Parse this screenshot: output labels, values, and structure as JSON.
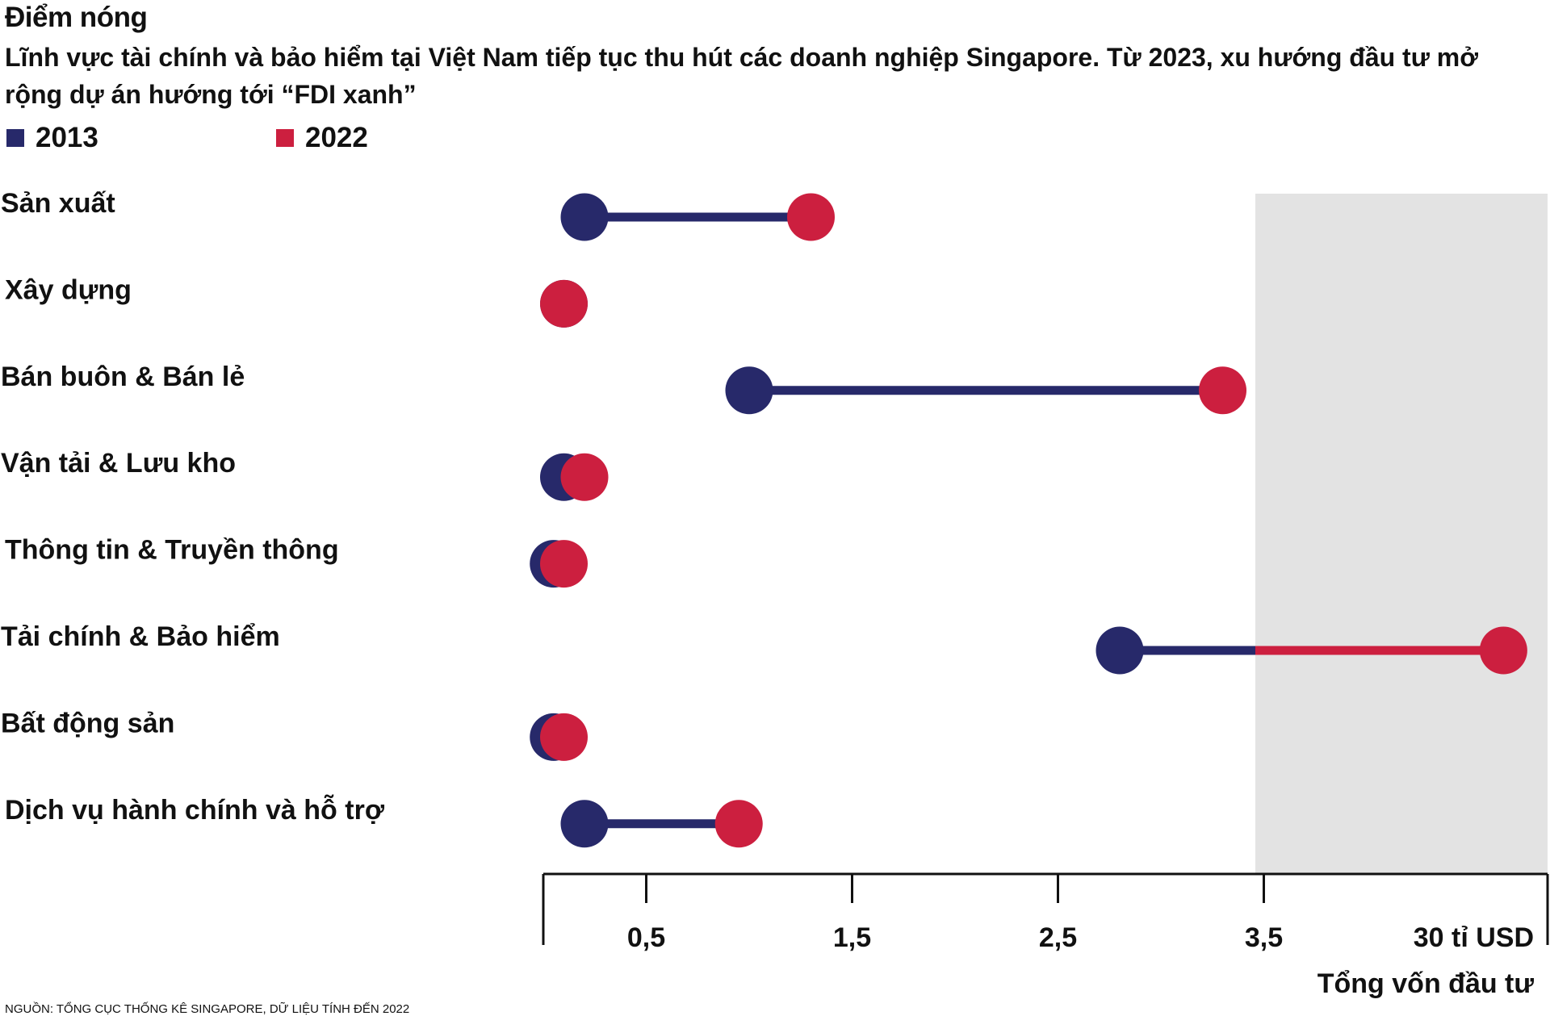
{
  "title": "Điểm nóng",
  "subtitle": "Lĩnh vực tài chính và bảo hiểm tại Việt Nam tiếp tục thu hút các doanh nghiệp Singapore. Từ 2023, xu hướng đầu tư mở rộng dự án hướng tới “FDI xanh”",
  "source": "NGUỒN: TỔNG CỤC THỐNG KÊ SINGAPORE, DỮ LIỆU TÍNH ĐẾN 2022",
  "colors": {
    "y2013": "#27296a",
    "y2022": "#cc1f3f",
    "highlight_band": "#e3e3e3",
    "axis": "#111111"
  },
  "chart_data": {
    "type": "dumbbell",
    "title": "Điểm nóng",
    "xlabel": "Tổng vốn đầu tư",
    "unit": "tỉ USD",
    "x_tick_labels": [
      "0,5",
      "1,5",
      "2,5",
      "3,5",
      "30 tỉ USD"
    ],
    "x_tick_values": [
      0.5,
      1.5,
      2.5,
      3.5,
      30
    ],
    "xlim": [
      0,
      30
    ],
    "axis_break_after": 3.5,
    "grid": false,
    "legend_position": "top-left",
    "series": [
      {
        "name": "2013",
        "color": "#27296a"
      },
      {
        "name": "2022",
        "color": "#cc1f3f"
      }
    ],
    "categories": [
      "Sản xuất",
      "Xây dựng",
      "Bán buôn & Bán lẻ",
      "Vận tải & Lưu kho",
      "Thông tin & Truyền thông",
      "Tải chính & Bảo hiểm",
      "Bất động sản",
      "Dịch vụ hành chính và hỗ trợ"
    ],
    "values_2013": [
      0.2,
      0.1,
      1.0,
      0.1,
      0.05,
      2.8,
      0.05,
      0.2
    ],
    "values_2022": [
      1.3,
      0.1,
      3.3,
      0.2,
      0.1,
      26.0,
      0.1,
      0.95
    ]
  }
}
